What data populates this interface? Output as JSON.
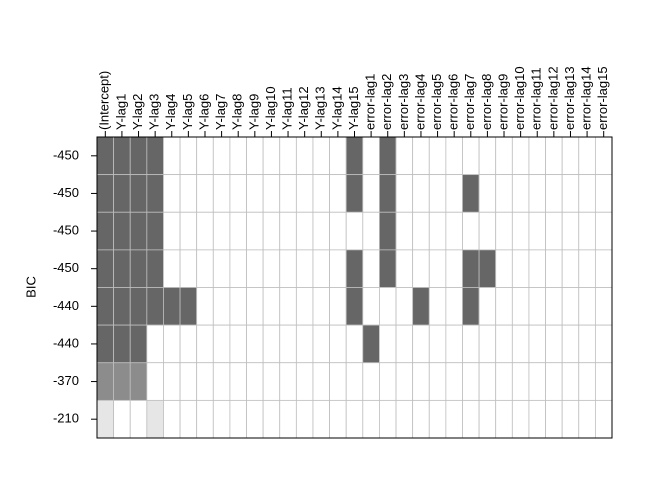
{
  "chart_data": {
    "type": "subset-grid",
    "ylabel": "BIC",
    "columns": [
      "(Intercept)",
      "Y-lag1",
      "Y-lag2",
      "Y-lag3",
      "Y-lag4",
      "Y-lag5",
      "Y-lag6",
      "Y-lag7",
      "Y-lag8",
      "Y-lag9",
      "Y-lag10",
      "Y-lag11",
      "Y-lag12",
      "Y-lag13",
      "Y-lag14",
      "Y-lag15",
      "error-lag1",
      "error-lag2",
      "error-lag3",
      "error-lag4",
      "error-lag5",
      "error-lag6",
      "error-lag7",
      "error-lag8",
      "error-lag9",
      "error-lag10",
      "error-lag11",
      "error-lag12",
      "error-lag13",
      "error-lag14",
      "error-lag15"
    ],
    "rows": [
      {
        "label": "-450",
        "color": "#666666",
        "included": [
          1,
          1,
          1,
          1,
          0,
          0,
          0,
          0,
          0,
          0,
          0,
          0,
          0,
          0,
          0,
          1,
          0,
          1,
          0,
          0,
          0,
          0,
          0,
          0,
          0,
          0,
          0,
          0,
          0,
          0,
          0
        ]
      },
      {
        "label": "-450",
        "color": "#666666",
        "included": [
          1,
          1,
          1,
          1,
          0,
          0,
          0,
          0,
          0,
          0,
          0,
          0,
          0,
          0,
          0,
          1,
          0,
          1,
          0,
          0,
          0,
          0,
          1,
          0,
          0,
          0,
          0,
          0,
          0,
          0,
          0
        ]
      },
      {
        "label": "-450",
        "color": "#666666",
        "included": [
          1,
          1,
          1,
          1,
          0,
          0,
          0,
          0,
          0,
          0,
          0,
          0,
          0,
          0,
          0,
          0,
          0,
          1,
          0,
          0,
          0,
          0,
          0,
          0,
          0,
          0,
          0,
          0,
          0,
          0,
          0
        ]
      },
      {
        "label": "-450",
        "color": "#666666",
        "included": [
          1,
          1,
          1,
          1,
          0,
          0,
          0,
          0,
          0,
          0,
          0,
          0,
          0,
          0,
          0,
          1,
          0,
          1,
          0,
          0,
          0,
          0,
          1,
          1,
          0,
          0,
          0,
          0,
          0,
          0,
          0
        ]
      },
      {
        "label": "-440",
        "color": "#666666",
        "included": [
          1,
          1,
          1,
          1,
          1,
          1,
          0,
          0,
          0,
          0,
          0,
          0,
          0,
          0,
          0,
          1,
          0,
          0,
          0,
          1,
          0,
          0,
          1,
          0,
          0,
          0,
          0,
          0,
          0,
          0,
          0
        ]
      },
      {
        "label": "-440",
        "color": "#666666",
        "included": [
          1,
          1,
          1,
          0,
          0,
          0,
          0,
          0,
          0,
          0,
          0,
          0,
          0,
          0,
          0,
          0,
          1,
          0,
          0,
          0,
          0,
          0,
          0,
          0,
          0,
          0,
          0,
          0,
          0,
          0,
          0
        ]
      },
      {
        "label": "-370",
        "color": "#8c8c8c",
        "included": [
          1,
          1,
          1,
          0,
          0,
          0,
          0,
          0,
          0,
          0,
          0,
          0,
          0,
          0,
          0,
          0,
          0,
          0,
          0,
          0,
          0,
          0,
          0,
          0,
          0,
          0,
          0,
          0,
          0,
          0,
          0
        ]
      },
      {
        "label": "-210",
        "color": "#e6e6e6",
        "included": [
          1,
          0,
          0,
          1,
          0,
          0,
          0,
          0,
          0,
          0,
          0,
          0,
          0,
          0,
          0,
          0,
          0,
          0,
          0,
          0,
          0,
          0,
          0,
          0,
          0,
          0,
          0,
          0,
          0,
          0,
          0
        ]
      }
    ]
  }
}
